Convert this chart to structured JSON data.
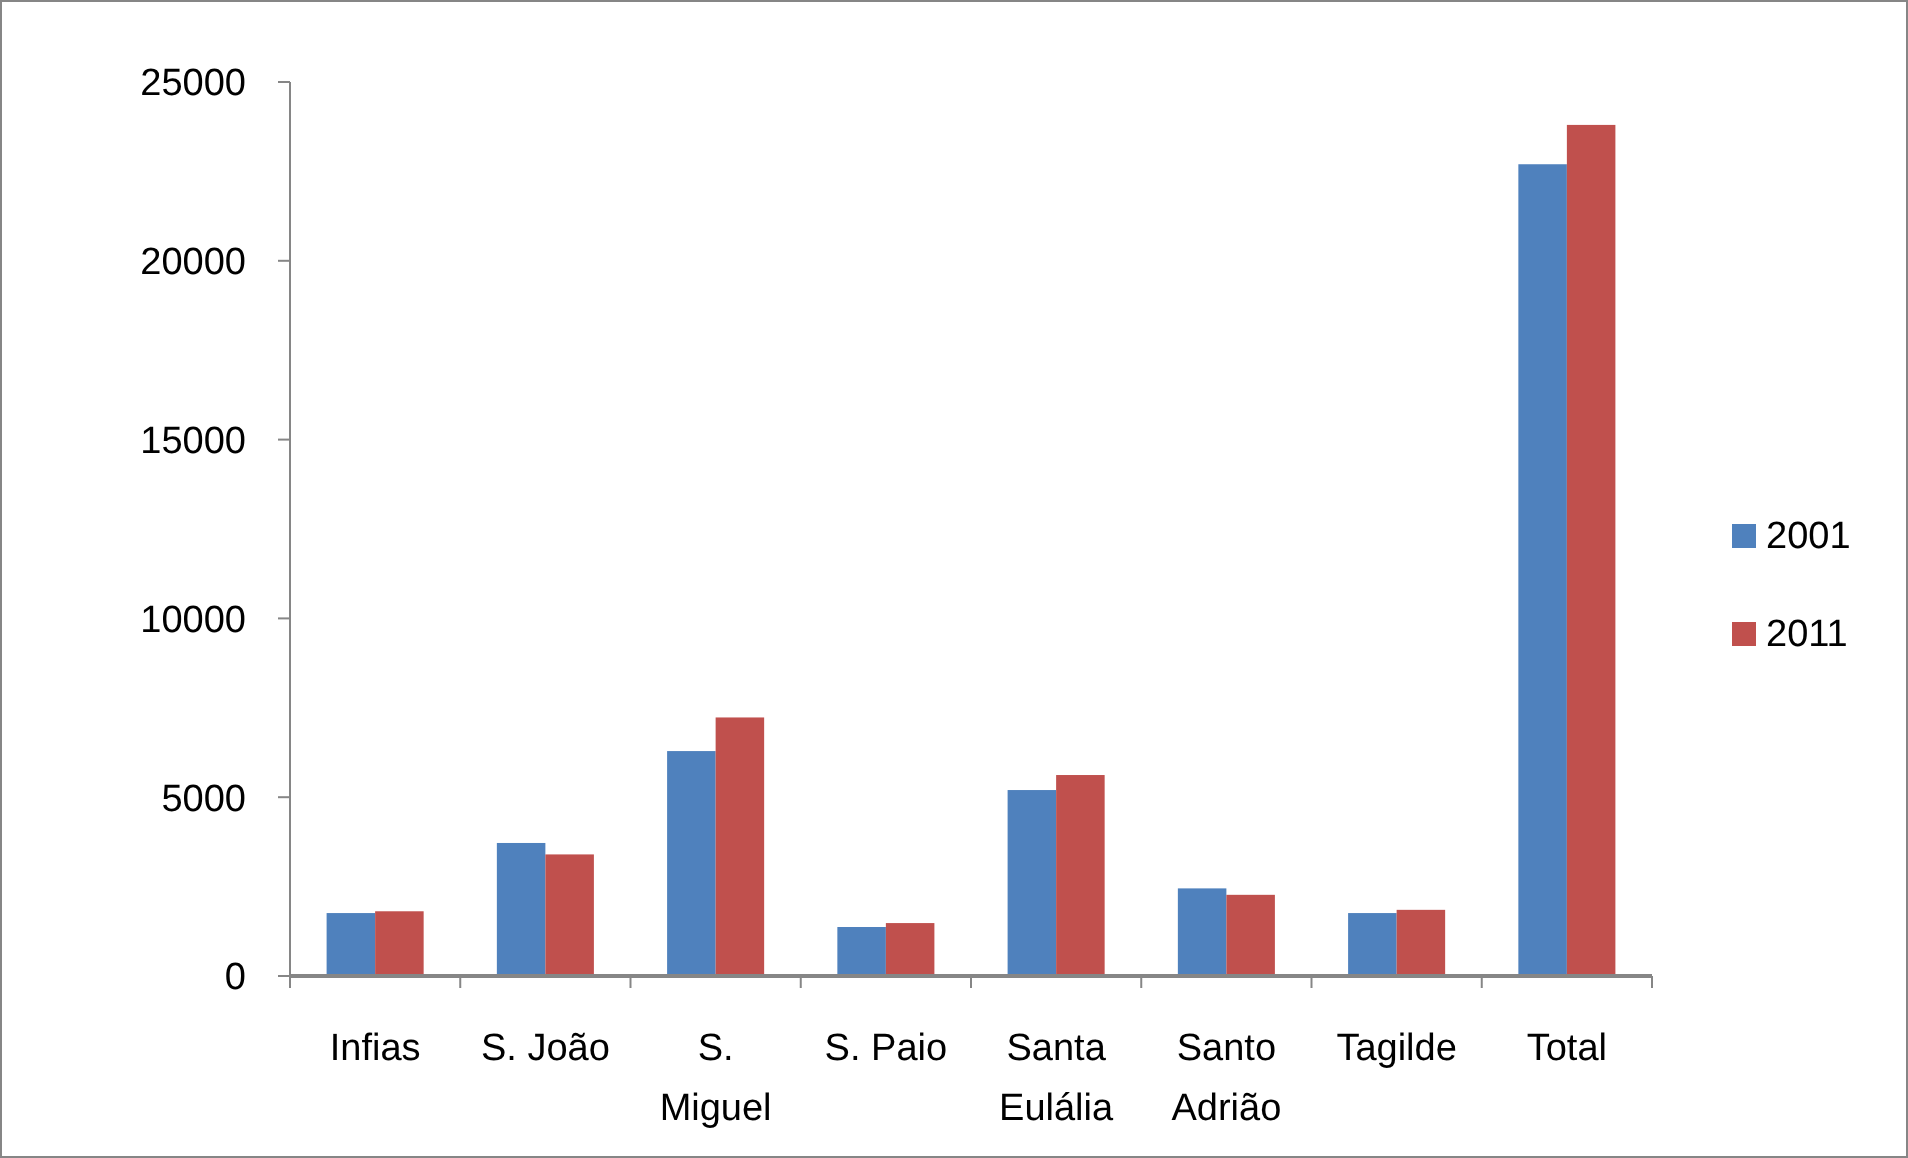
{
  "chart_data": {
    "type": "bar",
    "categories": [
      "Infias",
      "S. João",
      "S. Miguel",
      "S. Paio",
      "Santa Eulália",
      "Santo Adrião",
      "Tagilde",
      "Total"
    ],
    "series": [
      {
        "name": "2001",
        "color": "#4f81bd",
        "values": [
          1760,
          3720,
          6290,
          1370,
          5200,
          2450,
          1760,
          22700
        ]
      },
      {
        "name": "2011",
        "color": "#c0504d",
        "values": [
          1810,
          3400,
          7230,
          1480,
          5620,
          2270,
          1850,
          23800
        ]
      }
    ],
    "ylim": [
      0,
      25000
    ],
    "yticks": [
      0,
      5000,
      10000,
      15000,
      20000,
      25000
    ],
    "grid": false,
    "legend": "right"
  }
}
